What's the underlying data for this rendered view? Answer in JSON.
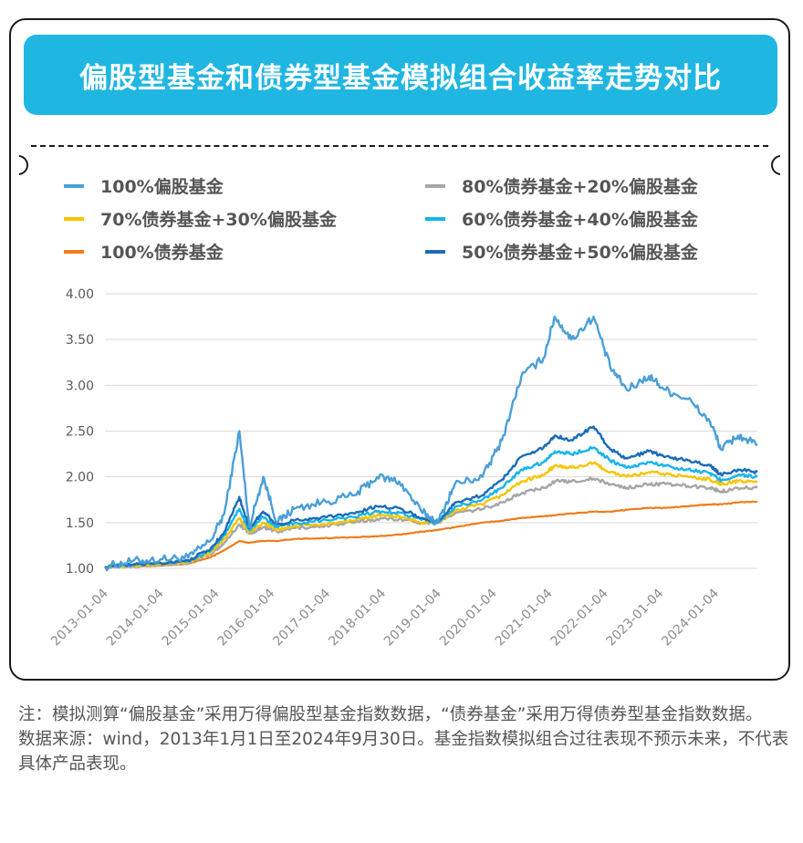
{
  "title": "偏股型基金和债券型基金模拟组合收益率走势对比",
  "footnotes": {
    "note": "注：模拟测算“偏股基金”采用万得偏股型基金指数数据，“债券基金”采用万得债券型基金指数数据。",
    "source": "数据来源：wind，2013年1月1日至2024年9月30日。基金指数模拟组合过往表现不预示未来，不代表具体产品表现。"
  },
  "colors": {
    "banner": "#20b6e2",
    "grid": "#d9d9d9"
  },
  "chart_data": {
    "type": "line",
    "ylim": [
      1.0,
      4.0
    ],
    "yticks": [
      "1.00",
      "1.50",
      "2.00",
      "2.50",
      "3.00",
      "3.50",
      "4.00"
    ],
    "xticks": [
      "2013-01-04",
      "2014-01-04",
      "2015-01-04",
      "2016-01-04",
      "2017-01-04",
      "2018-01-04",
      "2019-01-04",
      "2020-01-04",
      "2021-01-04",
      "2022-01-04",
      "2023-01-04",
      "2024-01-04"
    ],
    "x": [
      2013.0,
      2013.5,
      2014.0,
      2014.5,
      2014.9,
      2015.15,
      2015.42,
      2015.6,
      2015.85,
      2016.1,
      2016.4,
      2016.9,
      2017.5,
      2017.9,
      2018.3,
      2018.7,
      2019.0,
      2019.3,
      2019.8,
      2020.15,
      2020.5,
      2020.9,
      2021.1,
      2021.4,
      2021.8,
      2022.1,
      2022.4,
      2022.8,
      2023.1,
      2023.5,
      2023.9,
      2024.1,
      2024.4,
      2024.75
    ],
    "series": [
      {
        "name": "100%偏股基金",
        "color": "#4a9fd8",
        "values": [
          1.02,
          1.08,
          1.1,
          1.12,
          1.3,
          1.6,
          2.5,
          1.45,
          2.0,
          1.5,
          1.65,
          1.72,
          1.8,
          2.0,
          1.95,
          1.62,
          1.5,
          1.92,
          2.0,
          2.4,
          3.1,
          3.3,
          3.75,
          3.5,
          3.75,
          3.2,
          2.95,
          3.1,
          2.95,
          2.85,
          2.6,
          2.3,
          2.45,
          2.35
        ]
      },
      {
        "name": "80%债券基金+20%偏股基金",
        "color": "#a6a6a6",
        "values": [
          1.02,
          1.03,
          1.04,
          1.06,
          1.15,
          1.28,
          1.48,
          1.38,
          1.45,
          1.4,
          1.44,
          1.46,
          1.5,
          1.54,
          1.54,
          1.5,
          1.5,
          1.6,
          1.65,
          1.72,
          1.82,
          1.88,
          1.95,
          1.95,
          1.98,
          1.92,
          1.88,
          1.92,
          1.92,
          1.9,
          1.88,
          1.84,
          1.88,
          1.88
        ]
      },
      {
        "name": "70%债券基金+30%偏股基金",
        "color": "#f5c400",
        "values": [
          1.02,
          1.03,
          1.05,
          1.07,
          1.17,
          1.32,
          1.55,
          1.4,
          1.5,
          1.42,
          1.46,
          1.48,
          1.52,
          1.58,
          1.57,
          1.5,
          1.5,
          1.63,
          1.7,
          1.8,
          1.95,
          2.02,
          2.12,
          2.1,
          2.15,
          2.05,
          2.0,
          2.05,
          2.03,
          2.0,
          1.97,
          1.92,
          1.95,
          1.95
        ]
      },
      {
        "name": "60%债券基金+40%偏股基金",
        "color": "#17b4ec",
        "values": [
          1.02,
          1.04,
          1.06,
          1.08,
          1.19,
          1.36,
          1.65,
          1.42,
          1.56,
          1.45,
          1.49,
          1.52,
          1.56,
          1.62,
          1.61,
          1.53,
          1.5,
          1.67,
          1.75,
          1.88,
          2.08,
          2.16,
          2.28,
          2.25,
          2.32,
          2.18,
          2.1,
          2.16,
          2.12,
          2.08,
          2.04,
          1.96,
          2.02,
          2.0
        ]
      },
      {
        "name": "100%债券基金",
        "color": "#f07c1a",
        "values": [
          1.02,
          1.02,
          1.03,
          1.05,
          1.12,
          1.2,
          1.3,
          1.28,
          1.3,
          1.3,
          1.32,
          1.33,
          1.34,
          1.35,
          1.37,
          1.4,
          1.42,
          1.45,
          1.5,
          1.52,
          1.55,
          1.57,
          1.58,
          1.6,
          1.62,
          1.62,
          1.64,
          1.66,
          1.66,
          1.68,
          1.7,
          1.7,
          1.72,
          1.73
        ]
      },
      {
        "name": "50%债券基金+50%偏股基金",
        "color": "#1a6cb8",
        "values": [
          1.02,
          1.04,
          1.06,
          1.09,
          1.21,
          1.4,
          1.78,
          1.44,
          1.62,
          1.48,
          1.52,
          1.56,
          1.6,
          1.68,
          1.66,
          1.55,
          1.5,
          1.72,
          1.8,
          1.97,
          2.22,
          2.32,
          2.45,
          2.4,
          2.55,
          2.3,
          2.2,
          2.28,
          2.22,
          2.18,
          2.12,
          2.02,
          2.08,
          2.05
        ]
      }
    ]
  }
}
